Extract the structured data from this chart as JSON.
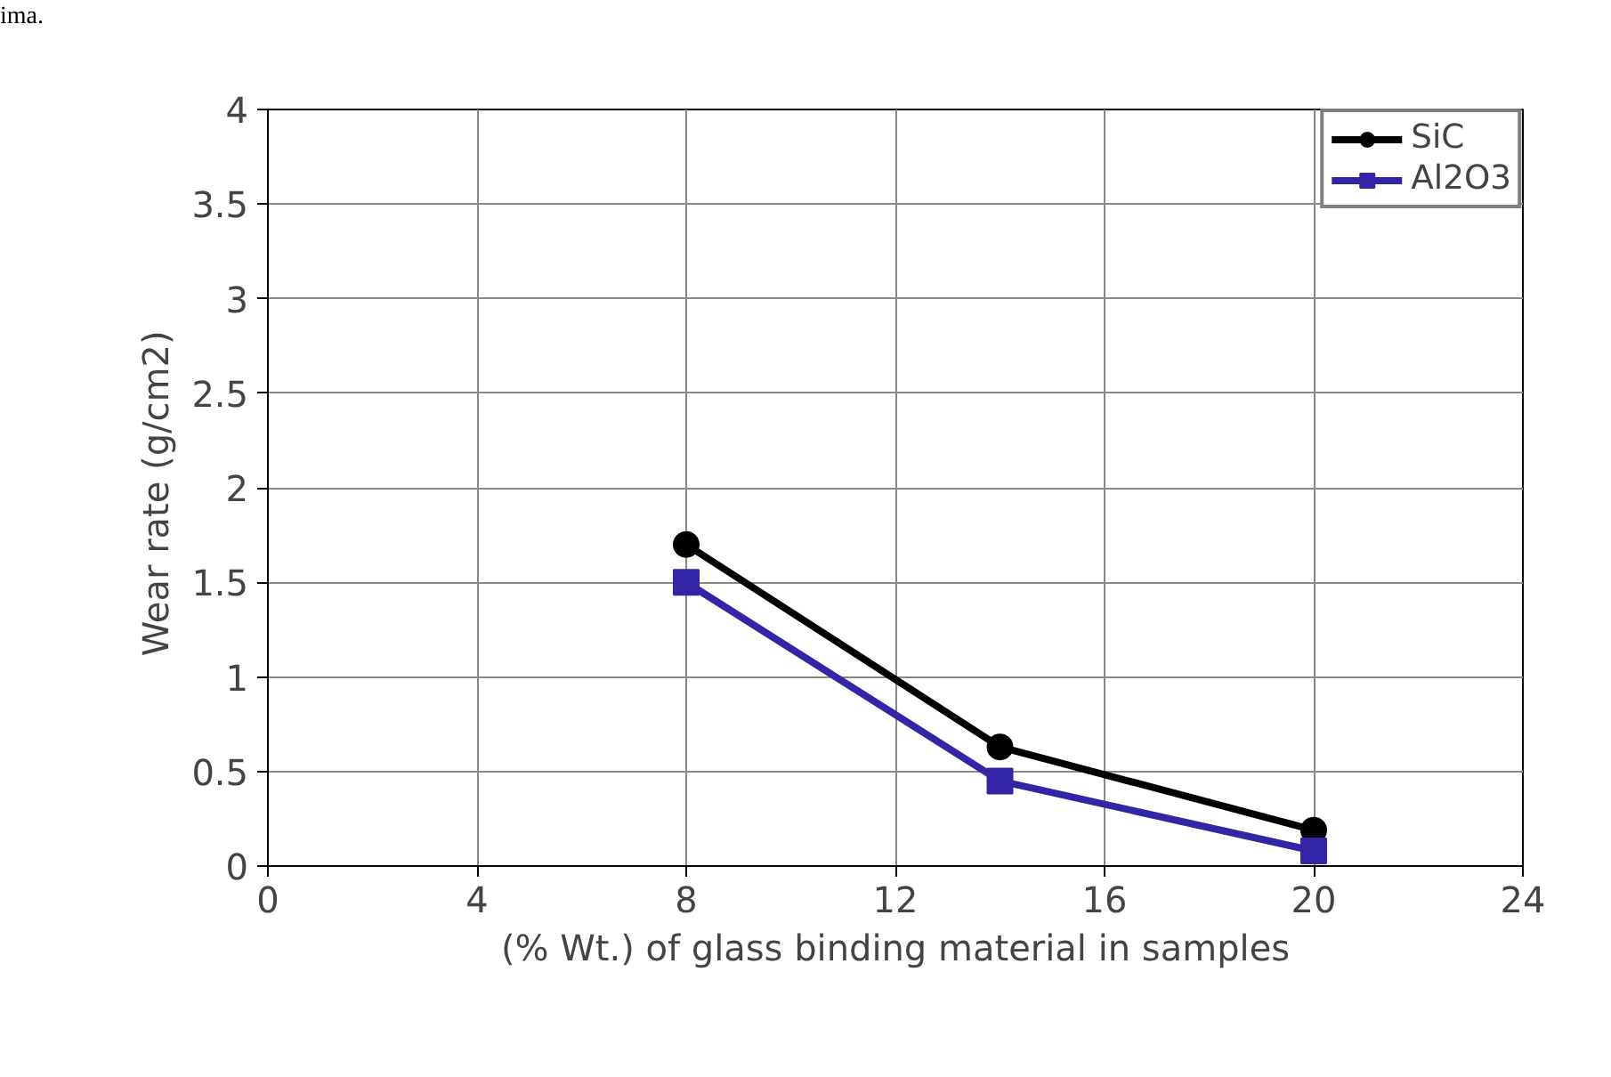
{
  "chart_data": {
    "type": "line",
    "xlabel": "(% Wt.) of glass binding material in samples",
    "ylabel": "Wear  rate (g/cm2)",
    "x": [
      8,
      14,
      20
    ],
    "series": [
      {
        "name": "SiC",
        "color": "#000000",
        "values": [
          1.7,
          0.63,
          0.19
        ],
        "marker": "circle"
      },
      {
        "name": "Al2O3",
        "color": "#3326a6",
        "values": [
          1.5,
          0.45,
          0.08
        ],
        "marker": "square"
      }
    ],
    "xlim": [
      0,
      24
    ],
    "xticks": [
      0,
      4,
      8,
      12,
      16,
      20,
      24
    ],
    "ylim": [
      0,
      4
    ],
    "yticks": [
      0,
      0.5,
      1,
      1.5,
      2,
      2.5,
      3,
      3.5,
      4
    ],
    "grid": true,
    "legend": "top right",
    "line_style": "solid",
    "annotations": [
      "ima."
    ]
  }
}
